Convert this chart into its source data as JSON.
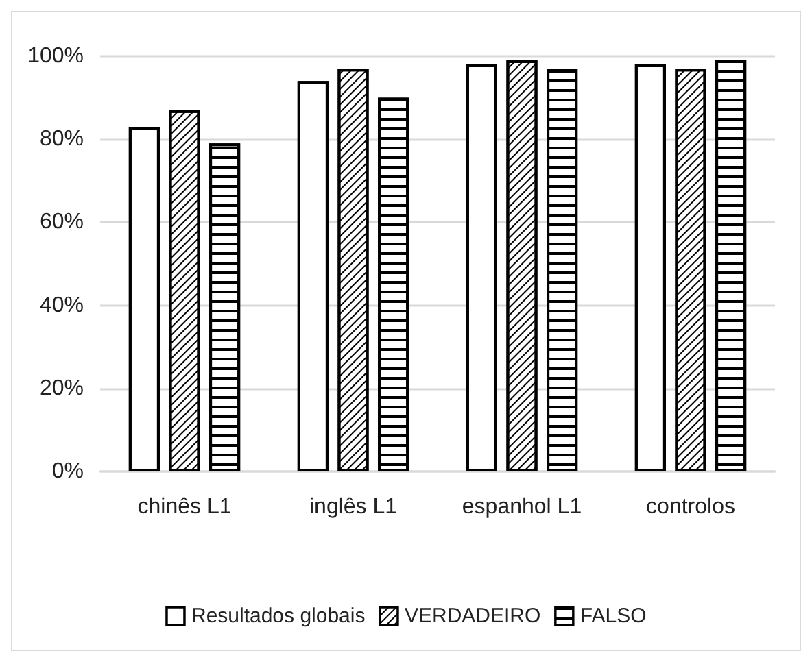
{
  "chart_data": {
    "type": "bar",
    "categories": [
      "chinês L1",
      "inglês L1",
      "espanhol L1",
      "controlos"
    ],
    "series": [
      {
        "name": "Resultados globais",
        "color": "#ffffff",
        "values": [
          83,
          94,
          98,
          98
        ]
      },
      {
        "name": "VERDADEIRO",
        "color": "#ffffff",
        "values": [
          87,
          97,
          99,
          97
        ]
      },
      {
        "name": "FALSO",
        "color": "#ffffff",
        "values": [
          79,
          90,
          97,
          99
        ]
      }
    ],
    "ylim": [
      0,
      100
    ],
    "yticks": [
      {
        "value": 0,
        "label": "0%"
      },
      {
        "value": 20,
        "label": "20%"
      },
      {
        "value": 40,
        "label": "40%"
      },
      {
        "value": 60,
        "label": "60%"
      },
      {
        "value": 80,
        "label": "80%"
      },
      {
        "value": 100,
        "label": "100%"
      }
    ],
    "grid": "y",
    "legend": "bottom"
  }
}
